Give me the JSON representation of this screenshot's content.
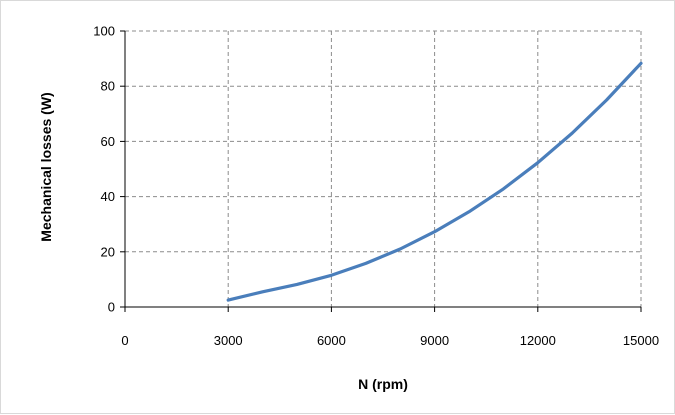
{
  "chart_data": {
    "type": "line",
    "title": "",
    "xlabel": "N (rpm)",
    "ylabel": "Mechanical losses (W)",
    "xlim": [
      0,
      15000
    ],
    "ylim": [
      0,
      100
    ],
    "x_ticks": [
      0,
      3000,
      6000,
      9000,
      12000,
      15000
    ],
    "y_ticks": [
      0,
      20,
      40,
      60,
      80,
      100
    ],
    "grid": true,
    "legend": "none",
    "series": [
      {
        "color": "#4a7ebb",
        "x": [
          3000,
          4000,
          5000,
          6000,
          7000,
          8000,
          9000,
          10000,
          11000,
          12000,
          13000,
          14000,
          15000
        ],
        "y": [
          2.5,
          5.5,
          8.2,
          11.5,
          15.8,
          21.0,
          27.3,
          34.5,
          42.8,
          52.3,
          63.0,
          75.0,
          88.3
        ]
      }
    ]
  }
}
